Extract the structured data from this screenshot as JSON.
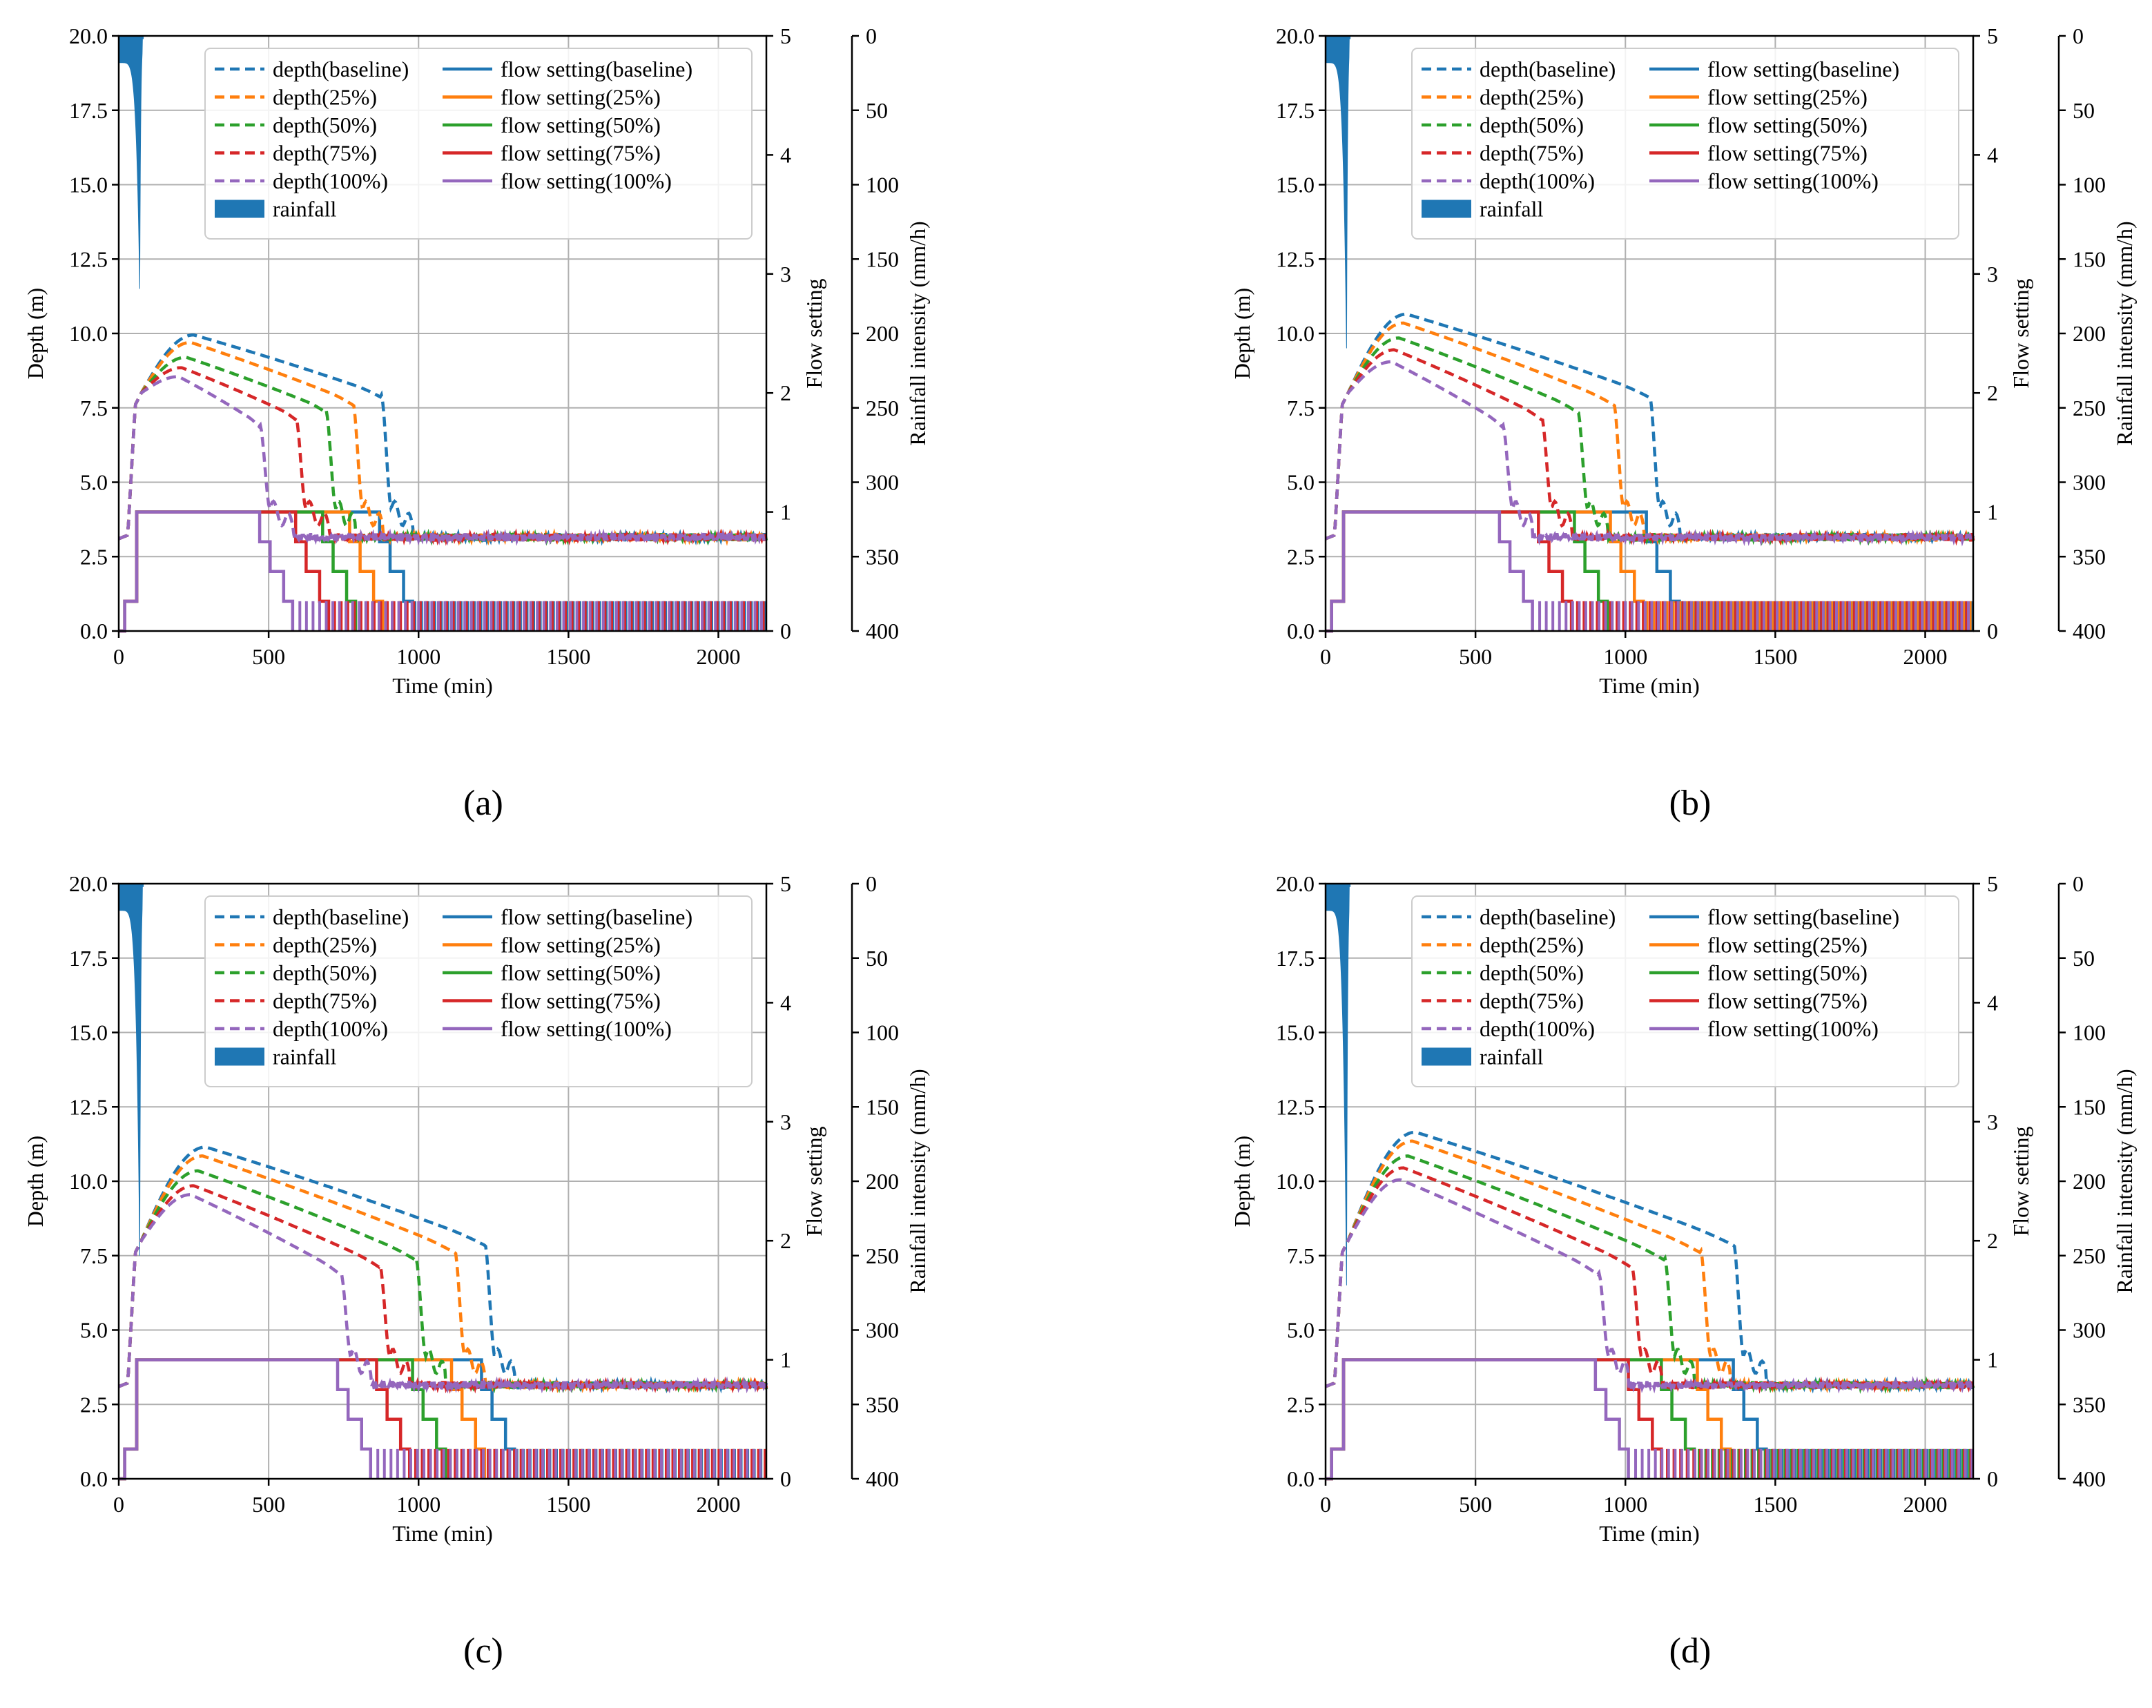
{
  "colors": {
    "baseline": "#1f77b4",
    "p25": "#ff7f0e",
    "p50": "#2ca02c",
    "p75": "#d62728",
    "p100": "#9467bd",
    "rainfall": "#1f77b4",
    "grid": "#b0b0b0"
  },
  "legend": {
    "depth_entries": [
      "depth(baseline)",
      "depth(25%)",
      "depth(50%)",
      "depth(75%)",
      "depth(100%)"
    ],
    "flow_entries": [
      "flow setting(baseline)",
      "flow setting(25%)",
      "flow setting(50%)",
      "flow setting(75%)",
      "flow setting(100%)"
    ],
    "rainfall_label": "rainfall",
    "placement": "top-right"
  },
  "chart_data": [
    {
      "type": "line",
      "panel_label": "(a)",
      "xlabel": "Time (min)",
      "ylabel_left": "Depth (m)",
      "ylabel_flow": "Flow setting",
      "ylabel_rain": "Rainfall intensity (mm/h)",
      "xlim": [
        0,
        2160
      ],
      "ylim_depth": [
        0,
        20
      ],
      "ylim_flow": [
        0,
        5
      ],
      "ylim_rain_inverted": [
        0,
        400
      ],
      "x_ticks": [
        "0",
        "500",
        "1000",
        "1500",
        "2000"
      ],
      "depth_ticks": [
        "0.0",
        "2.5",
        "5.0",
        "7.5",
        "10.0",
        "12.5",
        "15.0",
        "17.5",
        "20.0"
      ],
      "flow_ticks": [
        "0",
        "1",
        "2",
        "3",
        "4",
        "5"
      ],
      "rain_ticks": [
        "0",
        "50",
        "100",
        "150",
        "200",
        "250",
        "300",
        "350",
        "400"
      ],
      "rainfall_peak_mm_h": 170,
      "rainfall_peak_time": 70,
      "grid": true,
      "series": [
        {
          "name": "baseline",
          "peak_depth": 9.95,
          "peak_time": 250,
          "drop_start": 875,
          "drop_end": 980,
          "depth_end_drop": 7.95
        },
        {
          "name": "25%",
          "peak_depth": 9.7,
          "peak_time": 240,
          "drop_start": 780,
          "drop_end": 880,
          "depth_end_drop": 7.95
        },
        {
          "name": "50%",
          "peak_depth": 9.2,
          "peak_time": 225,
          "drop_start": 690,
          "drop_end": 790,
          "depth_end_drop": 7.95
        },
        {
          "name": "75%",
          "peak_depth": 8.85,
          "peak_time": 210,
          "drop_start": 590,
          "drop_end": 700,
          "depth_end_drop": 7.95
        },
        {
          "name": "100%",
          "peak_depth": 8.55,
          "peak_time": 200,
          "drop_start": 470,
          "drop_end": 580,
          "depth_end_drop": 7.95
        }
      ]
    },
    {
      "type": "line",
      "panel_label": "(b)",
      "xlabel": "Time (min)",
      "ylabel_left": "Depth (m)",
      "ylabel_flow": "Flow setting",
      "ylabel_rain": "Rainfall intensity (mm/h)",
      "xlim": [
        0,
        2160
      ],
      "ylim_depth": [
        0,
        20
      ],
      "ylim_flow": [
        0,
        5
      ],
      "ylim_rain_inverted": [
        0,
        400
      ],
      "x_ticks": [
        "0",
        "500",
        "1000",
        "1500",
        "2000"
      ],
      "depth_ticks": [
        "0.0",
        "2.5",
        "5.0",
        "7.5",
        "10.0",
        "12.5",
        "15.0",
        "17.5",
        "20.0"
      ],
      "flow_ticks": [
        "0",
        "1",
        "2",
        "3",
        "4",
        "5"
      ],
      "rain_ticks": [
        "0",
        "50",
        "100",
        "150",
        "200",
        "250",
        "300",
        "350",
        "400"
      ],
      "rainfall_peak_mm_h": 210,
      "rainfall_peak_time": 70,
      "grid": true,
      "series": [
        {
          "name": "baseline",
          "peak_depth": 10.65,
          "peak_time": 270,
          "drop_start": 1080,
          "drop_end": 1180,
          "depth_end_drop": 7.95
        },
        {
          "name": "25%",
          "peak_depth": 10.35,
          "peak_time": 260,
          "drop_start": 960,
          "drop_end": 1060,
          "depth_end_drop": 7.95
        },
        {
          "name": "50%",
          "peak_depth": 9.85,
          "peak_time": 245,
          "drop_start": 840,
          "drop_end": 940,
          "depth_end_drop": 7.95
        },
        {
          "name": "75%",
          "peak_depth": 9.45,
          "peak_time": 230,
          "drop_start": 720,
          "drop_end": 820,
          "depth_end_drop": 7.95
        },
        {
          "name": "100%",
          "peak_depth": 9.05,
          "peak_time": 220,
          "drop_start": 590,
          "drop_end": 690,
          "depth_end_drop": 7.95
        }
      ]
    },
    {
      "type": "line",
      "panel_label": "(c)",
      "xlabel": "Time (min)",
      "ylabel_left": "Depth (m)",
      "ylabel_flow": "Flow setting",
      "ylabel_rain": "Rainfall intensity (mm/h)",
      "xlim": [
        0,
        2160
      ],
      "ylim_depth": [
        0,
        20
      ],
      "ylim_flow": [
        0,
        5
      ],
      "ylim_rain_inverted": [
        0,
        400
      ],
      "x_ticks": [
        "0",
        "500",
        "1000",
        "1500",
        "2000"
      ],
      "depth_ticks": [
        "0.0",
        "2.5",
        "5.0",
        "7.5",
        "10.0",
        "12.5",
        "15.0",
        "17.5",
        "20.0"
      ],
      "flow_ticks": [
        "0",
        "1",
        "2",
        "3",
        "4",
        "5"
      ],
      "rain_ticks": [
        "0",
        "50",
        "100",
        "150",
        "200",
        "250",
        "300",
        "350",
        "400"
      ],
      "rainfall_peak_mm_h": 250,
      "rainfall_peak_time": 70,
      "grid": true,
      "series": [
        {
          "name": "baseline",
          "peak_depth": 11.15,
          "peak_time": 290,
          "drop_start": 1220,
          "drop_end": 1320,
          "depth_end_drop": 7.95
        },
        {
          "name": "25%",
          "peak_depth": 10.85,
          "peak_time": 280,
          "drop_start": 1120,
          "drop_end": 1220,
          "depth_end_drop": 7.95
        },
        {
          "name": "50%",
          "peak_depth": 10.35,
          "peak_time": 265,
          "drop_start": 990,
          "drop_end": 1090,
          "depth_end_drop": 7.95
        },
        {
          "name": "75%",
          "peak_depth": 9.85,
          "peak_time": 250,
          "drop_start": 870,
          "drop_end": 970,
          "depth_end_drop": 7.95
        },
        {
          "name": "100%",
          "peak_depth": 9.55,
          "peak_time": 240,
          "drop_start": 740,
          "drop_end": 840,
          "depth_end_drop": 7.95
        }
      ]
    },
    {
      "type": "line",
      "panel_label": "(d)",
      "xlabel": "Time (min)",
      "ylabel_left": "Depth (m)",
      "ylabel_flow": "Flow setting",
      "ylabel_rain": "Rainfall intensity (mm/h)",
      "xlim": [
        0,
        2160
      ],
      "ylim_depth": [
        0,
        20
      ],
      "ylim_flow": [
        0,
        5
      ],
      "ylim_rain_inverted": [
        0,
        400
      ],
      "x_ticks": [
        "0",
        "500",
        "1000",
        "1500",
        "2000"
      ],
      "depth_ticks": [
        "0.0",
        "2.5",
        "5.0",
        "7.5",
        "10.0",
        "12.5",
        "15.0",
        "17.5",
        "20.0"
      ],
      "flow_ticks": [
        "0",
        "1",
        "2",
        "3",
        "4",
        "5"
      ],
      "rain_ticks": [
        "0",
        "50",
        "100",
        "150",
        "200",
        "250",
        "300",
        "350",
        "400"
      ],
      "rainfall_peak_mm_h": 270,
      "rainfall_peak_time": 70,
      "grid": true,
      "series": [
        {
          "name": "baseline",
          "peak_depth": 11.65,
          "peak_time": 300,
          "drop_start": 1360,
          "drop_end": 1470,
          "depth_end_drop": 7.95
        },
        {
          "name": "25%",
          "peak_depth": 11.35,
          "peak_time": 290,
          "drop_start": 1250,
          "drop_end": 1350,
          "depth_end_drop": 7.95
        },
        {
          "name": "50%",
          "peak_depth": 10.85,
          "peak_time": 275,
          "drop_start": 1130,
          "drop_end": 1230,
          "depth_end_drop": 7.95
        },
        {
          "name": "75%",
          "peak_depth": 10.45,
          "peak_time": 260,
          "drop_start": 1020,
          "drop_end": 1120,
          "depth_end_drop": 7.95
        },
        {
          "name": "100%",
          "peak_depth": 10.05,
          "peak_time": 250,
          "drop_start": 910,
          "drop_end": 1010,
          "depth_end_drop": 7.95
        }
      ]
    }
  ]
}
